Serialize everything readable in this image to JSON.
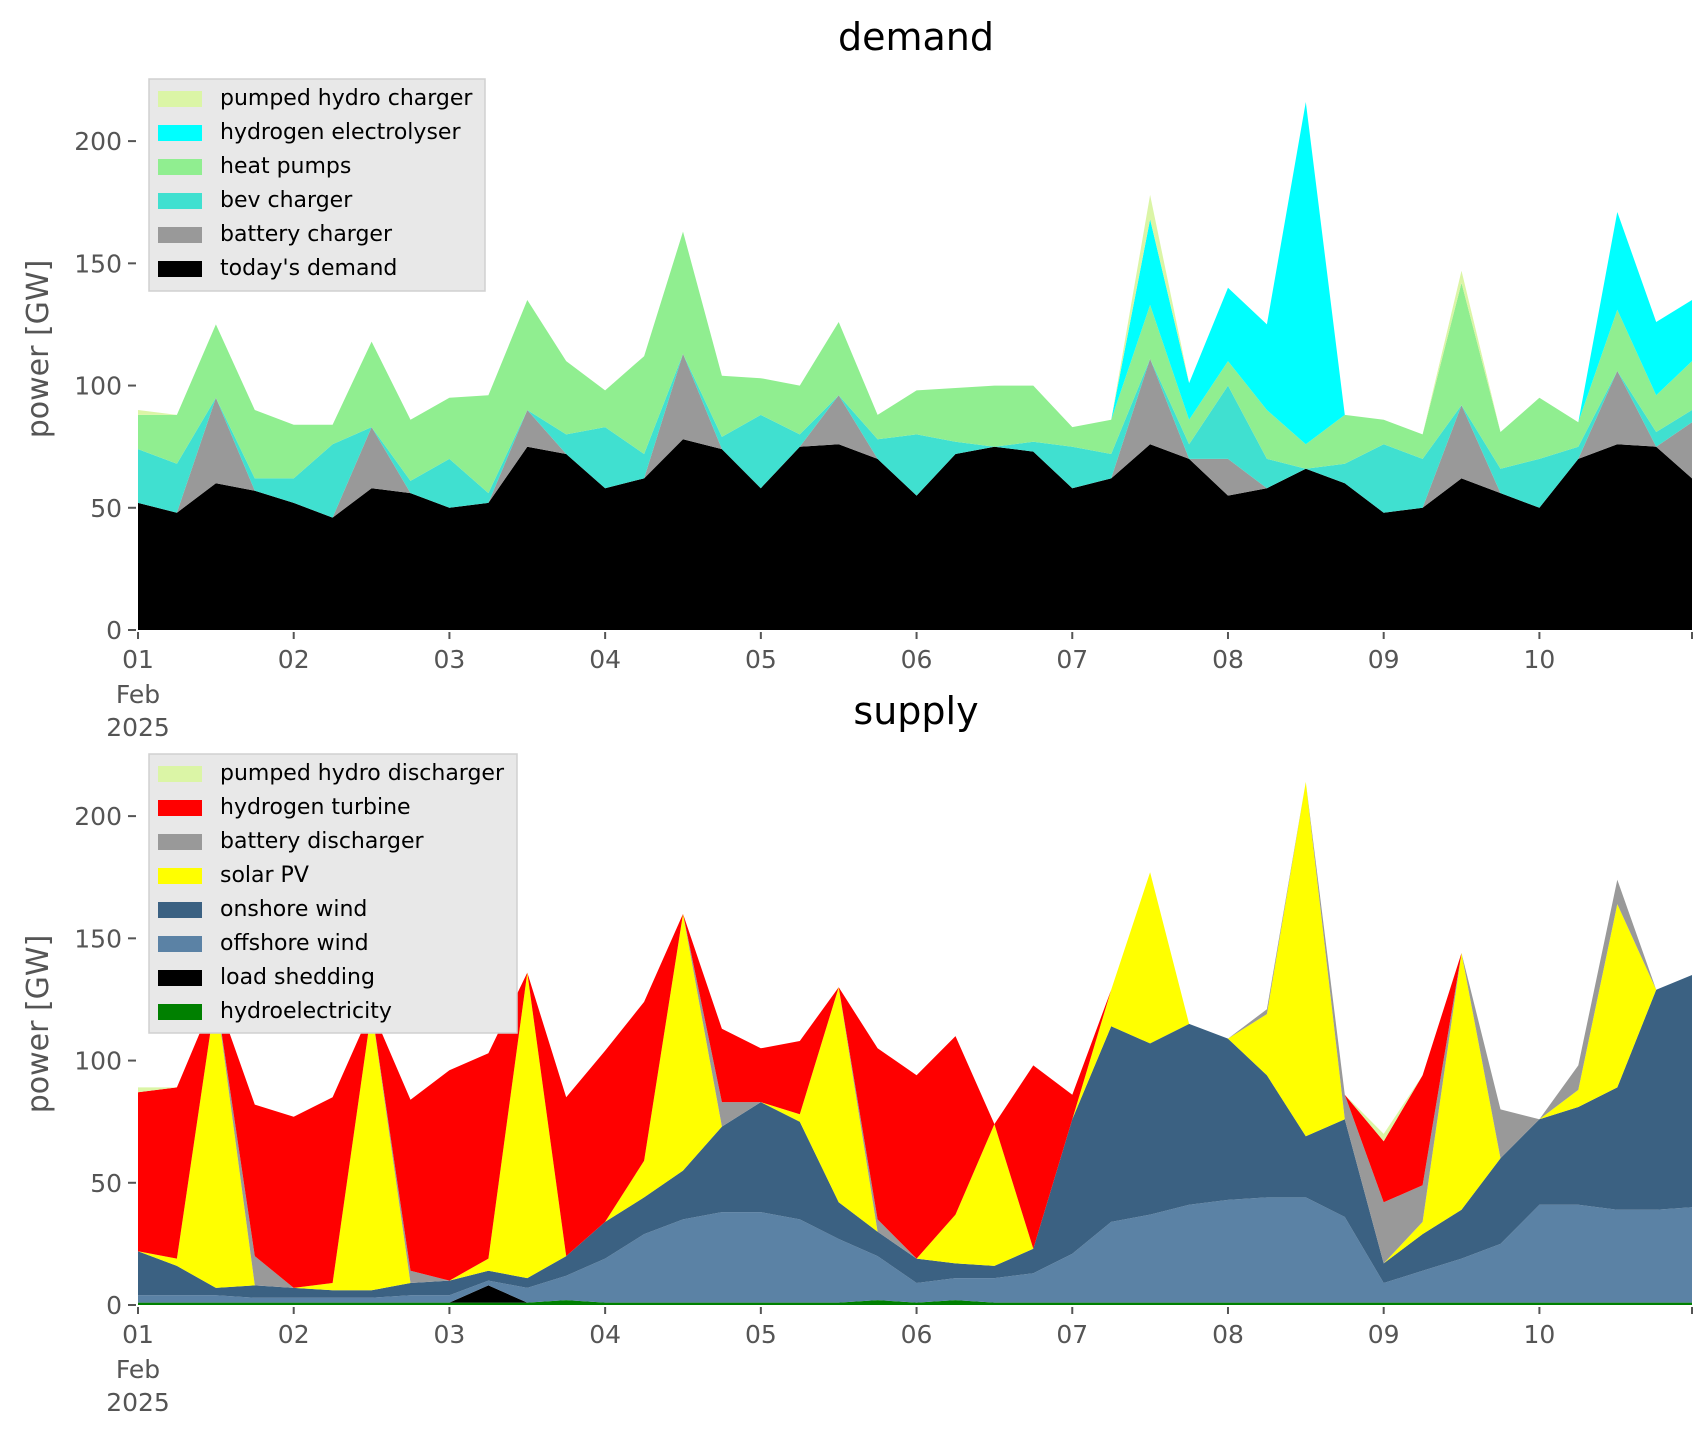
{
  "chart_data": [
    {
      "type": "area",
      "title": "demand",
      "ylabel": "power [GW]",
      "xlabel": "",
      "ylim": [
        0,
        225
      ],
      "xlim_days": [
        1,
        10.98
      ],
      "yticks": [
        0,
        50,
        100,
        150,
        200
      ],
      "xticks": [
        {
          "day": 1,
          "label": "01",
          "sub1": "Feb",
          "sub2": "2025"
        },
        {
          "day": 2,
          "label": "02"
        },
        {
          "day": 3,
          "label": "03"
        },
        {
          "day": 4,
          "label": "04"
        },
        {
          "day": 5,
          "label": "05"
        },
        {
          "day": 6,
          "label": "06"
        },
        {
          "day": 7,
          "label": "07"
        },
        {
          "day": 8,
          "label": "08"
        },
        {
          "day": 9,
          "label": "09"
        },
        {
          "day": 10,
          "label": "10"
        }
      ],
      "grid": false,
      "legend_position": "top-left",
      "legend": [
        {
          "label": "pumped hydro charger",
          "color": "#dbf5a6"
        },
        {
          "label": "hydrogen electrolyser",
          "color": "#00ffff"
        },
        {
          "label": "heat pumps",
          "color": "#90ee90"
        },
        {
          "label": "bev charger",
          "color": "#40e0d0"
        },
        {
          "label": "battery charger",
          "color": "#999999"
        },
        {
          "label": "today's demand",
          "color": "#000000"
        }
      ],
      "x": [
        1.0,
        1.25,
        1.5,
        1.75,
        2.0,
        2.25,
        2.5,
        2.75,
        3.0,
        3.25,
        3.5,
        3.75,
        4.0,
        4.25,
        4.5,
        4.75,
        5.0,
        5.25,
        5.5,
        5.75,
        6.0,
        6.25,
        6.5,
        6.75,
        7.0,
        7.25,
        7.5,
        7.75,
        8.0,
        8.25,
        8.5,
        8.75,
        9.0,
        9.25,
        9.5,
        9.75,
        10.0,
        10.25,
        10.5,
        10.75,
        10.98
      ],
      "series": [
        {
          "name": "today's demand",
          "color": "#000000",
          "values": [
            52,
            48,
            60,
            57,
            52,
            46,
            58,
            56,
            50,
            52,
            75,
            72,
            58,
            62,
            78,
            74,
            58,
            75,
            76,
            70,
            55,
            72,
            75,
            73,
            58,
            62,
            76,
            70,
            55,
            58,
            66,
            60,
            48,
            50,
            62,
            56,
            50,
            70,
            76,
            75,
            62
          ]
        },
        {
          "name": "battery charger",
          "color": "#999999",
          "values": [
            0,
            0,
            35,
            0,
            0,
            0,
            25,
            0,
            0,
            0,
            15,
            0,
            0,
            0,
            35,
            0,
            0,
            0,
            20,
            0,
            0,
            0,
            0,
            0,
            0,
            0,
            35,
            0,
            15,
            0,
            0,
            0,
            0,
            0,
            30,
            0,
            0,
            0,
            30,
            0,
            23
          ]
        },
        {
          "name": "bev charger",
          "color": "#40e0d0",
          "values": [
            22,
            20,
            0,
            5,
            10,
            30,
            0,
            5,
            20,
            4,
            0,
            8,
            25,
            10,
            0,
            5,
            30,
            5,
            0,
            8,
            25,
            5,
            0,
            4,
            17,
            10,
            0,
            6,
            30,
            12,
            0,
            8,
            28,
            20,
            0,
            10,
            20,
            5,
            0,
            6,
            5
          ]
        },
        {
          "name": "heat pumps",
          "color": "#90ee90",
          "values": [
            14,
            20,
            30,
            28,
            22,
            8,
            35,
            25,
            25,
            40,
            45,
            30,
            15,
            40,
            50,
            25,
            15,
            20,
            30,
            10,
            18,
            22,
            25,
            23,
            8,
            14,
            22,
            10,
            10,
            20,
            10,
            20,
            10,
            10,
            50,
            15,
            25,
            10,
            25,
            15,
            20
          ]
        },
        {
          "name": "hydrogen electrolyser",
          "color": "#00ffff",
          "values": [
            0,
            0,
            0,
            0,
            0,
            0,
            0,
            0,
            0,
            0,
            0,
            0,
            0,
            0,
            0,
            0,
            0,
            0,
            0,
            0,
            0,
            0,
            0,
            0,
            0,
            0,
            35,
            15,
            30,
            35,
            140,
            0,
            0,
            0,
            0,
            0,
            0,
            0,
            40,
            30,
            25
          ]
        },
        {
          "name": "pumped hydro charger",
          "color": "#dbf5a6",
          "values": [
            2,
            0,
            0,
            0,
            0,
            0,
            0,
            0,
            0,
            0,
            0,
            0,
            0,
            0,
            0,
            0,
            0,
            0,
            0,
            0,
            0,
            0,
            0,
            0,
            0,
            0,
            10,
            0,
            0,
            0,
            0,
            0,
            0,
            0,
            5,
            0,
            0,
            0,
            0,
            0,
            0
          ]
        }
      ]
    },
    {
      "type": "area",
      "title": "supply",
      "ylabel": "power [GW]",
      "xlabel": "",
      "ylim": [
        0,
        225
      ],
      "xlim_days": [
        1,
        10.98
      ],
      "yticks": [
        0,
        50,
        100,
        150,
        200
      ],
      "xticks": [
        {
          "day": 1,
          "label": "01",
          "sub1": "Feb",
          "sub2": "2025"
        },
        {
          "day": 2,
          "label": "02"
        },
        {
          "day": 3,
          "label": "03"
        },
        {
          "day": 4,
          "label": "04"
        },
        {
          "day": 5,
          "label": "05"
        },
        {
          "day": 6,
          "label": "06"
        },
        {
          "day": 7,
          "label": "07"
        },
        {
          "day": 8,
          "label": "08"
        },
        {
          "day": 9,
          "label": "09"
        },
        {
          "day": 10,
          "label": "10"
        }
      ],
      "grid": false,
      "legend_position": "top-left",
      "legend": [
        {
          "label": "pumped hydro discharger",
          "color": "#dbf5a6"
        },
        {
          "label": "hydrogen turbine",
          "color": "#ff0000"
        },
        {
          "label": "battery discharger",
          "color": "#999999"
        },
        {
          "label": "solar PV",
          "color": "#ffff00"
        },
        {
          "label": "onshore wind",
          "color": "#3b6182"
        },
        {
          "label": "offshore wind",
          "color": "#5b82a5"
        },
        {
          "label": "load shedding",
          "color": "#000000"
        },
        {
          "label": "hydroelectricity",
          "color": "#008000"
        }
      ],
      "x": [
        1.0,
        1.25,
        1.5,
        1.75,
        2.0,
        2.25,
        2.5,
        2.75,
        3.0,
        3.25,
        3.5,
        3.75,
        4.0,
        4.25,
        4.5,
        4.75,
        5.0,
        5.25,
        5.5,
        5.75,
        6.0,
        6.25,
        6.5,
        6.75,
        7.0,
        7.25,
        7.5,
        7.75,
        8.0,
        8.25,
        8.5,
        8.75,
        9.0,
        9.25,
        9.5,
        9.75,
        10.0,
        10.25,
        10.5,
        10.75,
        10.98
      ],
      "series": [
        {
          "name": "hydroelectricity",
          "color": "#008000",
          "values": [
            1,
            1,
            1,
            1,
            1,
            1,
            1,
            1,
            1,
            1,
            1,
            2,
            1,
            1,
            1,
            1,
            1,
            1,
            1,
            2,
            1,
            2,
            1,
            1,
            1,
            1,
            1,
            1,
            1,
            1,
            1,
            1,
            1,
            1,
            1,
            1,
            1,
            1,
            1,
            1,
            1
          ]
        },
        {
          "name": "load shedding",
          "color": "#000000",
          "values": [
            0,
            0,
            0,
            0,
            0,
            0,
            0,
            0,
            0,
            7,
            0,
            0,
            0,
            0,
            0,
            0,
            0,
            0,
            0,
            0,
            0,
            0,
            0,
            0,
            0,
            0,
            0,
            0,
            0,
            0,
            0,
            0,
            0,
            0,
            0,
            0,
            0,
            0,
            0,
            0,
            0
          ]
        },
        {
          "name": "offshore wind",
          "color": "#5b82a5",
          "values": [
            3,
            3,
            3,
            2,
            2,
            2,
            2,
            3,
            3,
            2,
            6,
            10,
            18,
            28,
            34,
            37,
            37,
            34,
            26,
            18,
            8,
            9,
            10,
            12,
            20,
            33,
            36,
            40,
            42,
            43,
            43,
            35,
            8,
            13,
            18,
            24,
            40,
            40,
            38,
            38,
            39
          ]
        },
        {
          "name": "onshore wind",
          "color": "#3b6182",
          "values": [
            18,
            12,
            3,
            5,
            4,
            3,
            3,
            5,
            6,
            4,
            4,
            8,
            15,
            15,
            20,
            35,
            45,
            40,
            15,
            10,
            10,
            6,
            5,
            10,
            55,
            80,
            70,
            74,
            66,
            50,
            25,
            40,
            8,
            15,
            20,
            35,
            35,
            40,
            50,
            90,
            95
          ]
        },
        {
          "name": "solar PV",
          "color": "#ffff00",
          "values": [
            0,
            3,
            120,
            0,
            0,
            3,
            115,
            0,
            0,
            5,
            125,
            0,
            0,
            15,
            105,
            0,
            0,
            3,
            88,
            0,
            0,
            20,
            58,
            0,
            0,
            15,
            70,
            0,
            0,
            25,
            145,
            0,
            0,
            5,
            105,
            0,
            0,
            7,
            75,
            0,
            0
          ]
        },
        {
          "name": "battery discharger",
          "color": "#999999",
          "values": [
            0,
            0,
            0,
            12,
            0,
            0,
            0,
            5,
            0,
            0,
            0,
            0,
            0,
            0,
            0,
            10,
            0,
            0,
            0,
            5,
            0,
            0,
            0,
            0,
            0,
            0,
            0,
            0,
            0,
            2,
            0,
            10,
            25,
            15,
            0,
            20,
            0,
            10,
            10,
            0,
            0
          ]
        },
        {
          "name": "hydrogen turbine",
          "color": "#ff0000",
          "values": [
            65,
            70,
            0,
            62,
            70,
            76,
            0,
            70,
            86,
            84,
            0,
            65,
            70,
            65,
            0,
            30,
            22,
            30,
            0,
            70,
            75,
            73,
            0,
            75,
            10,
            0,
            0,
            0,
            0,
            0,
            0,
            0,
            25,
            45,
            0,
            0,
            0,
            0,
            0,
            0,
            0
          ]
        },
        {
          "name": "pumped hydro discharger",
          "color": "#dbf5a6",
          "values": [
            2,
            0,
            0,
            0,
            0,
            0,
            0,
            0,
            0,
            0,
            0,
            0,
            0,
            0,
            0,
            0,
            0,
            0,
            0,
            0,
            0,
            0,
            0,
            0,
            0,
            0,
            0,
            0,
            0,
            0,
            0,
            0,
            3,
            0,
            0,
            0,
            0,
            0,
            0,
            0,
            0
          ]
        }
      ]
    }
  ]
}
